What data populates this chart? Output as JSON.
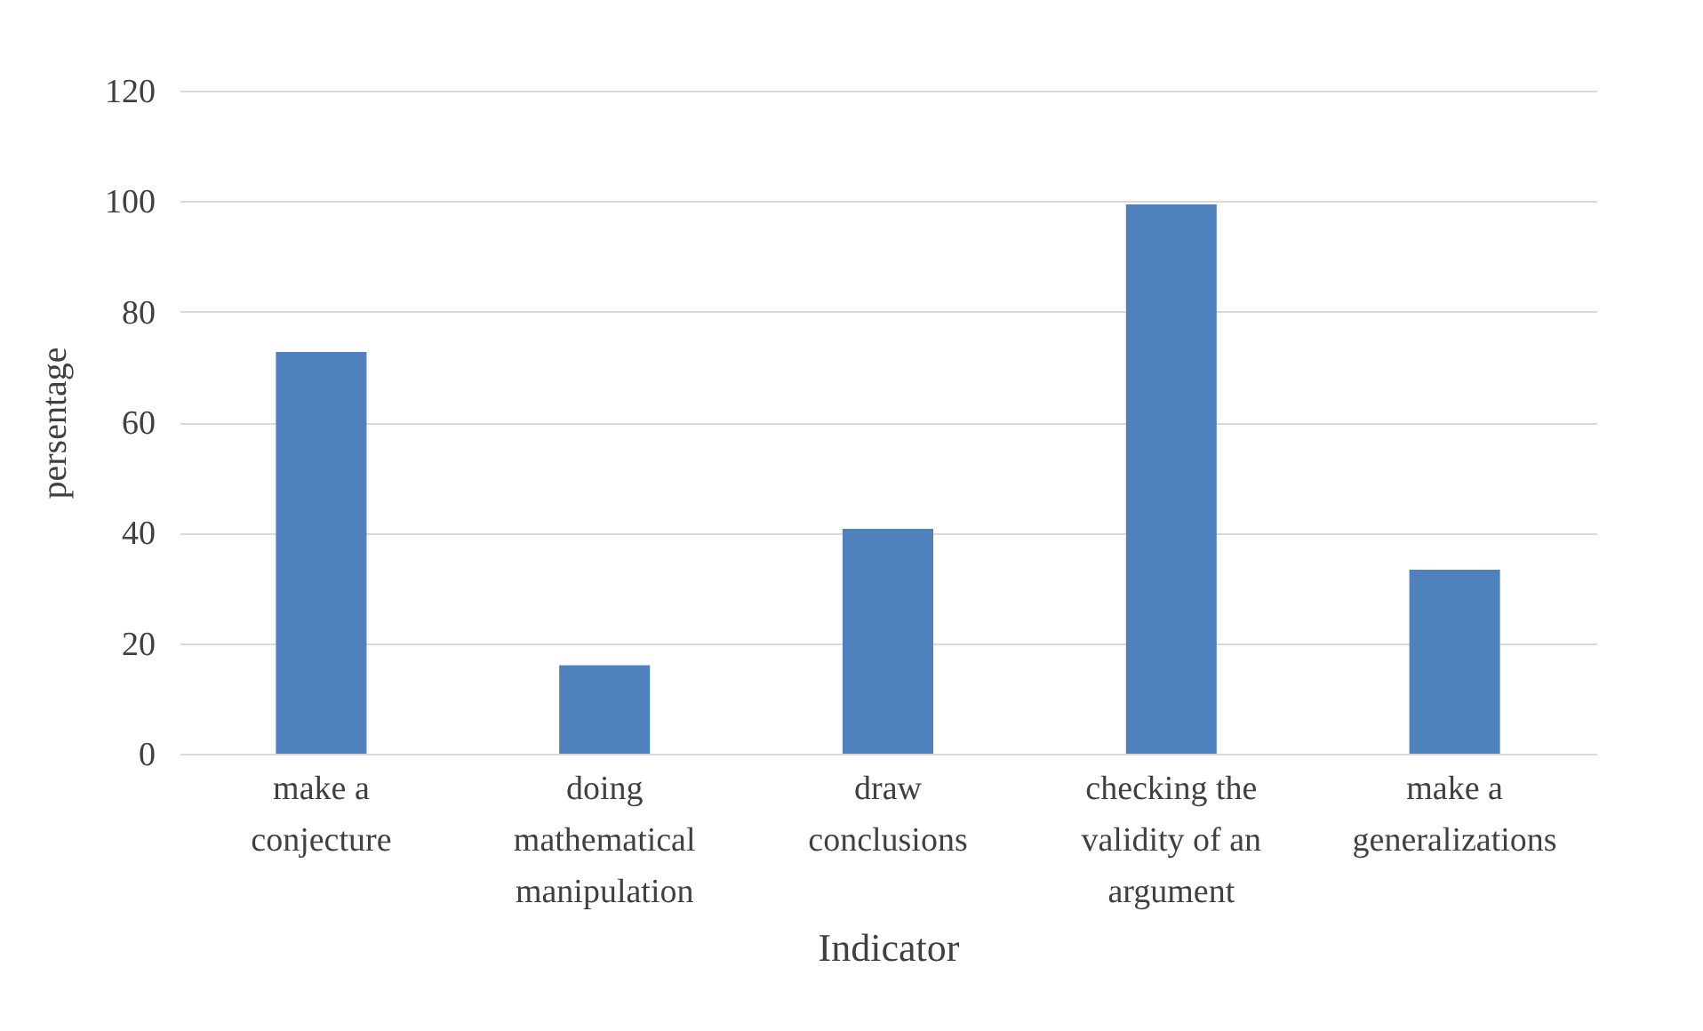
{
  "chart_data": {
    "type": "bar",
    "xlabel": "Indicator",
    "ylabel": "persentage",
    "categories": [
      "make a conjecture",
      "doing mathematical manipulation",
      "draw conclusions",
      "checking the validity of an argument",
      "make a generalizations"
    ],
    "values": [
      72.7,
      16,
      40.7,
      99.4,
      33.3
    ],
    "color": "#4f81bd",
    "ylim": [
      0,
      120
    ],
    "yticks": [
      0,
      20,
      40,
      60,
      80,
      100,
      120
    ],
    "grid": "y"
  }
}
